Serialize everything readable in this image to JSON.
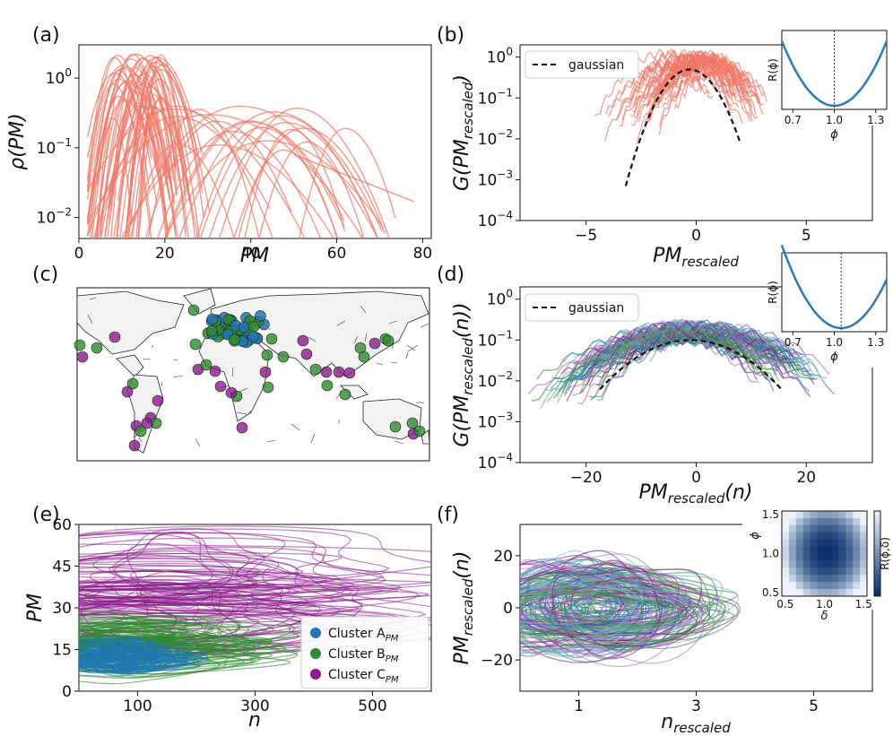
{
  "colors": {
    "salmon": "#f07868",
    "clusterA": "#1f77b4",
    "clusterB": "#2e8b2e",
    "clusterC": "#8b1a8b",
    "blue": "#2a7ab8",
    "land": "#f2f2f2"
  },
  "panels": {
    "a": "(a)",
    "b": "(b)",
    "c": "(c)",
    "d": "(d)",
    "e": "(e)",
    "f": "(f)"
  },
  "chart_data": [
    {
      "id": "a",
      "type": "line",
      "title": "",
      "xlabel": "PM",
      "ylabel": "ρ(PM)",
      "xlim": [
        0,
        82
      ],
      "yscale": "log",
      "ylim": [
        0.005,
        3
      ],
      "xticks": [
        "0",
        "20",
        "40",
        "60",
        "80"
      ],
      "yticks": [
        "10^0",
        "10^-1",
        "10^-2"
      ],
      "series_desc": "many normalized PM density curves (one per city)",
      "curves": [
        [
          12,
          1.2
        ],
        [
          10,
          0.9
        ],
        [
          14,
          1.5
        ],
        [
          9,
          0.7
        ],
        [
          16,
          0.6
        ],
        [
          18,
          0.4
        ],
        [
          22,
          0.3
        ],
        [
          26,
          0.25
        ],
        [
          30,
          0.2
        ],
        [
          35,
          0.15
        ],
        [
          40,
          0.1
        ],
        [
          47,
          0.3
        ],
        [
          55,
          0.07
        ],
        [
          70,
          0.05
        ]
      ]
    },
    {
      "id": "b",
      "type": "line",
      "xlabel": "PM_rescaled",
      "ylabel": "G(PM_rescaled)",
      "xlim": [
        -8,
        8
      ],
      "yscale": "log",
      "ylim": [
        0.0001,
        2
      ],
      "xticks": [
        "−5",
        "0",
        "5"
      ],
      "yticks": [
        "10^0",
        "10^-1",
        "10^-2",
        "10^-3",
        "10^-4"
      ],
      "legend": "gaussian",
      "gaussian": {
        "mu": -0.3,
        "sigma": 0.8,
        "peak": 0.5
      },
      "inset": {
        "xlabel": "ϕ",
        "ylabel": "R(ϕ)",
        "xticks": [
          "0.7",
          "1.0",
          "1.3"
        ],
        "min_at": 1.0
      }
    },
    {
      "id": "d",
      "type": "line",
      "xlabel": "PM_rescaled(n)",
      "ylabel": "G(PM_rescaled(n))",
      "xlim": [
        -32,
        32
      ],
      "yscale": "log",
      "ylim": [
        0.0001,
        2
      ],
      "xticks": [
        "−20",
        "0",
        "20"
      ],
      "yticks": [
        "10^0",
        "10^-1",
        "10^-2",
        "10^-3",
        "10^-4"
      ],
      "legend": "gaussian",
      "gaussian": {
        "mu": -1,
        "sigma": 7,
        "peak": 0.1
      },
      "inset": {
        "xlabel": "ϕ",
        "ylabel": "R(ϕ)",
        "xticks": [
          "0.7",
          "1.0",
          "1.3"
        ],
        "min_at": 1.05
      }
    },
    {
      "id": "e",
      "type": "line",
      "xlabel": "n",
      "ylabel": "PM",
      "xlim": [
        0,
        600
      ],
      "ylim": [
        0,
        60
      ],
      "xticks": [
        "100",
        "300",
        "500"
      ],
      "yticks": [
        "0",
        "15",
        "30",
        "45",
        "60"
      ],
      "legend": [
        "Cluster A",
        "Cluster B",
        "Cluster C"
      ],
      "legend_sub": "PM"
    },
    {
      "id": "f",
      "type": "line",
      "xlabel": "n_rescaled",
      "ylabel": "PM_rescaled(n)",
      "xlim": [
        0,
        6
      ],
      "ylim": [
        -32,
        32
      ],
      "xticks": [
        "1",
        "3",
        "5"
      ],
      "yticks": [
        "20",
        "0",
        "−20"
      ],
      "inset": {
        "type": "heatmap",
        "xlabel": "δ",
        "ylabel": "ϕ",
        "colorbar": "R(ϕ,δ)",
        "xticks": [
          "0.5",
          "1.0",
          "1.5"
        ],
        "yticks": [
          "1.5",
          "1.0",
          "0.5"
        ]
      }
    }
  ],
  "map": {
    "title": "(c)",
    "legend": "Cluster A / B / C city locations"
  }
}
